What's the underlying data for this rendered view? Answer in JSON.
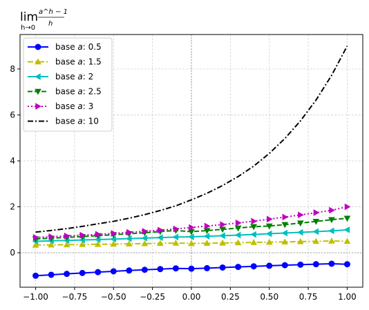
{
  "chart_data": {
    "type": "line",
    "title_parts": {
      "main": "lim",
      "sub": "h→0",
      "numerator": "a^h − 1",
      "denominator": "h"
    },
    "xlabel": "",
    "ylabel": "",
    "xlim": [
      -1.1,
      1.1
    ],
    "ylim": [
      -1.5,
      9.5
    ],
    "xticks": [
      -1.0,
      -0.75,
      -0.5,
      -0.25,
      0.0,
      0.25,
      0.5,
      0.75,
      1.0
    ],
    "xtick_labels": [
      "−1.00",
      "−0.75",
      "−0.50",
      "−0.25",
      "0.00",
      "0.25",
      "0.50",
      "0.75",
      "1.00"
    ],
    "yticks": [
      0,
      2,
      4,
      6,
      8
    ],
    "ytick_labels": [
      "0",
      "2",
      "4",
      "6",
      "8"
    ],
    "grid": true,
    "legend_position": "top-left",
    "reference_lines": {
      "x": 0,
      "y": 0
    },
    "x": [
      -1.0,
      -0.9,
      -0.8,
      -0.7,
      -0.6,
      -0.5,
      -0.4,
      -0.3,
      -0.2,
      -0.1,
      0.0,
      0.1,
      0.2,
      0.3,
      0.4,
      0.5,
      0.6,
      0.7,
      0.8,
      0.9,
      1.0
    ],
    "series": [
      {
        "name": "base a: 0.5",
        "label_prefix": "base ",
        "label_var": "a",
        "label_value": ": 0.5",
        "color": "#0000ff",
        "dash": "solid",
        "marker": "circle",
        "values": [
          -1.0,
          -0.958,
          -0.918,
          -0.88,
          -0.843,
          -0.807,
          -0.773,
          -0.741,
          -0.71,
          -0.68,
          -0.693,
          -0.67,
          -0.643,
          -0.616,
          -0.59,
          -0.566,
          -0.542,
          -0.519,
          -0.498,
          -0.477,
          -0.5
        ]
      },
      {
        "name": "base a: 1.5",
        "label_prefix": "base ",
        "label_var": "a",
        "label_value": ": 1.5",
        "color": "#bfbf00",
        "dash": "dashdot",
        "marker": "triangle-up",
        "values": [
          0.333,
          0.342,
          0.351,
          0.361,
          0.37,
          0.38,
          0.39,
          0.4,
          0.411,
          0.422,
          0.405,
          0.416,
          0.427,
          0.438,
          0.45,
          0.462,
          0.474,
          0.486,
          0.499,
          0.512,
          0.5
        ]
      },
      {
        "name": "base a: 2",
        "label_prefix": "base ",
        "label_var": "a",
        "label_value": ": 2",
        "color": "#00bfbf",
        "dash": "solid",
        "marker": "triangle-left",
        "values": [
          0.5,
          0.517,
          0.536,
          0.555,
          0.574,
          0.594,
          0.615,
          0.637,
          0.659,
          0.683,
          0.693,
          0.718,
          0.743,
          0.77,
          0.797,
          0.828,
          0.858,
          0.889,
          0.921,
          0.954,
          1.0
        ]
      },
      {
        "name": "base a: 2.5",
        "label_prefix": "base ",
        "label_var": "a",
        "label_value": ": 2.5",
        "color": "#008000",
        "dash": "dashed",
        "marker": "triangle-down",
        "values": [
          0.6,
          0.633,
          0.668,
          0.704,
          0.743,
          0.784,
          0.827,
          0.872,
          0.92,
          0.971,
          0.916,
          0.966,
          1.019,
          1.075,
          1.134,
          1.162,
          1.226,
          1.293,
          1.364,
          1.439,
          1.5
        ]
      },
      {
        "name": "base a: 3",
        "label_prefix": "base ",
        "label_var": "a",
        "label_value": ": 3",
        "color": "#bf00bf",
        "dash": "dotted",
        "marker": "triangle-right",
        "values": [
          0.667,
          0.698,
          0.731,
          0.766,
          0.802,
          0.845,
          0.889,
          0.936,
          0.985,
          1.037,
          1.099,
          1.161,
          1.228,
          1.299,
          1.373,
          1.464,
          1.553,
          1.647,
          1.746,
          1.851,
          2.0
        ]
      },
      {
        "name": "base a: 10",
        "label_prefix": "base ",
        "label_var": "a",
        "label_value": ": 10",
        "color": "#000000",
        "dash": "dashdot",
        "marker": "none",
        "values": [
          0.9,
          0.97,
          1.052,
          1.148,
          1.262,
          1.368,
          1.505,
          1.66,
          1.839,
          2.045,
          2.303,
          2.589,
          2.926,
          3.317,
          3.772,
          4.325,
          4.975,
          5.741,
          6.648,
          7.724,
          9.0
        ]
      }
    ]
  }
}
